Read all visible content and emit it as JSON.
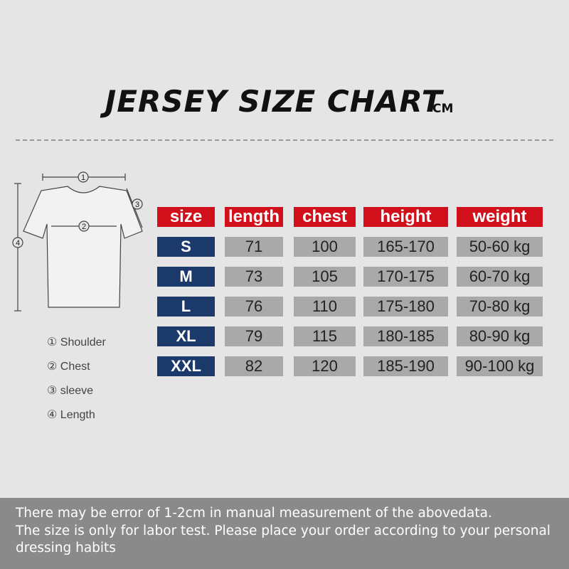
{
  "header": {
    "title": "JERSEY SIZE CHART",
    "unit": "CM"
  },
  "diagram": {
    "markers": [
      "1",
      "2",
      "3",
      "4"
    ]
  },
  "legend": [
    "① Shoulder",
    "② Chest",
    "③ sleeve",
    "④ Length"
  ],
  "table": {
    "headers": [
      "size",
      "length",
      "chest",
      "height",
      "weight"
    ],
    "rows": [
      [
        "S",
        "71",
        "100",
        "165-170",
        "50-60 kg"
      ],
      [
        "M",
        "73",
        "105",
        "170-175",
        "60-70 kg"
      ],
      [
        "L",
        "76",
        "110",
        "175-180",
        "70-80 kg"
      ],
      [
        "XL",
        "79",
        "115",
        "180-185",
        "80-90 kg"
      ],
      [
        "XXL",
        "82",
        "120",
        "185-190",
        "90-100 kg"
      ]
    ]
  },
  "footer": {
    "lines": [
      "There may be error of 1-2cm in manual measurement of the abovedata.",
      "The size is only for labor test. Please place your order according to your personal",
      "dressing habits"
    ]
  }
}
